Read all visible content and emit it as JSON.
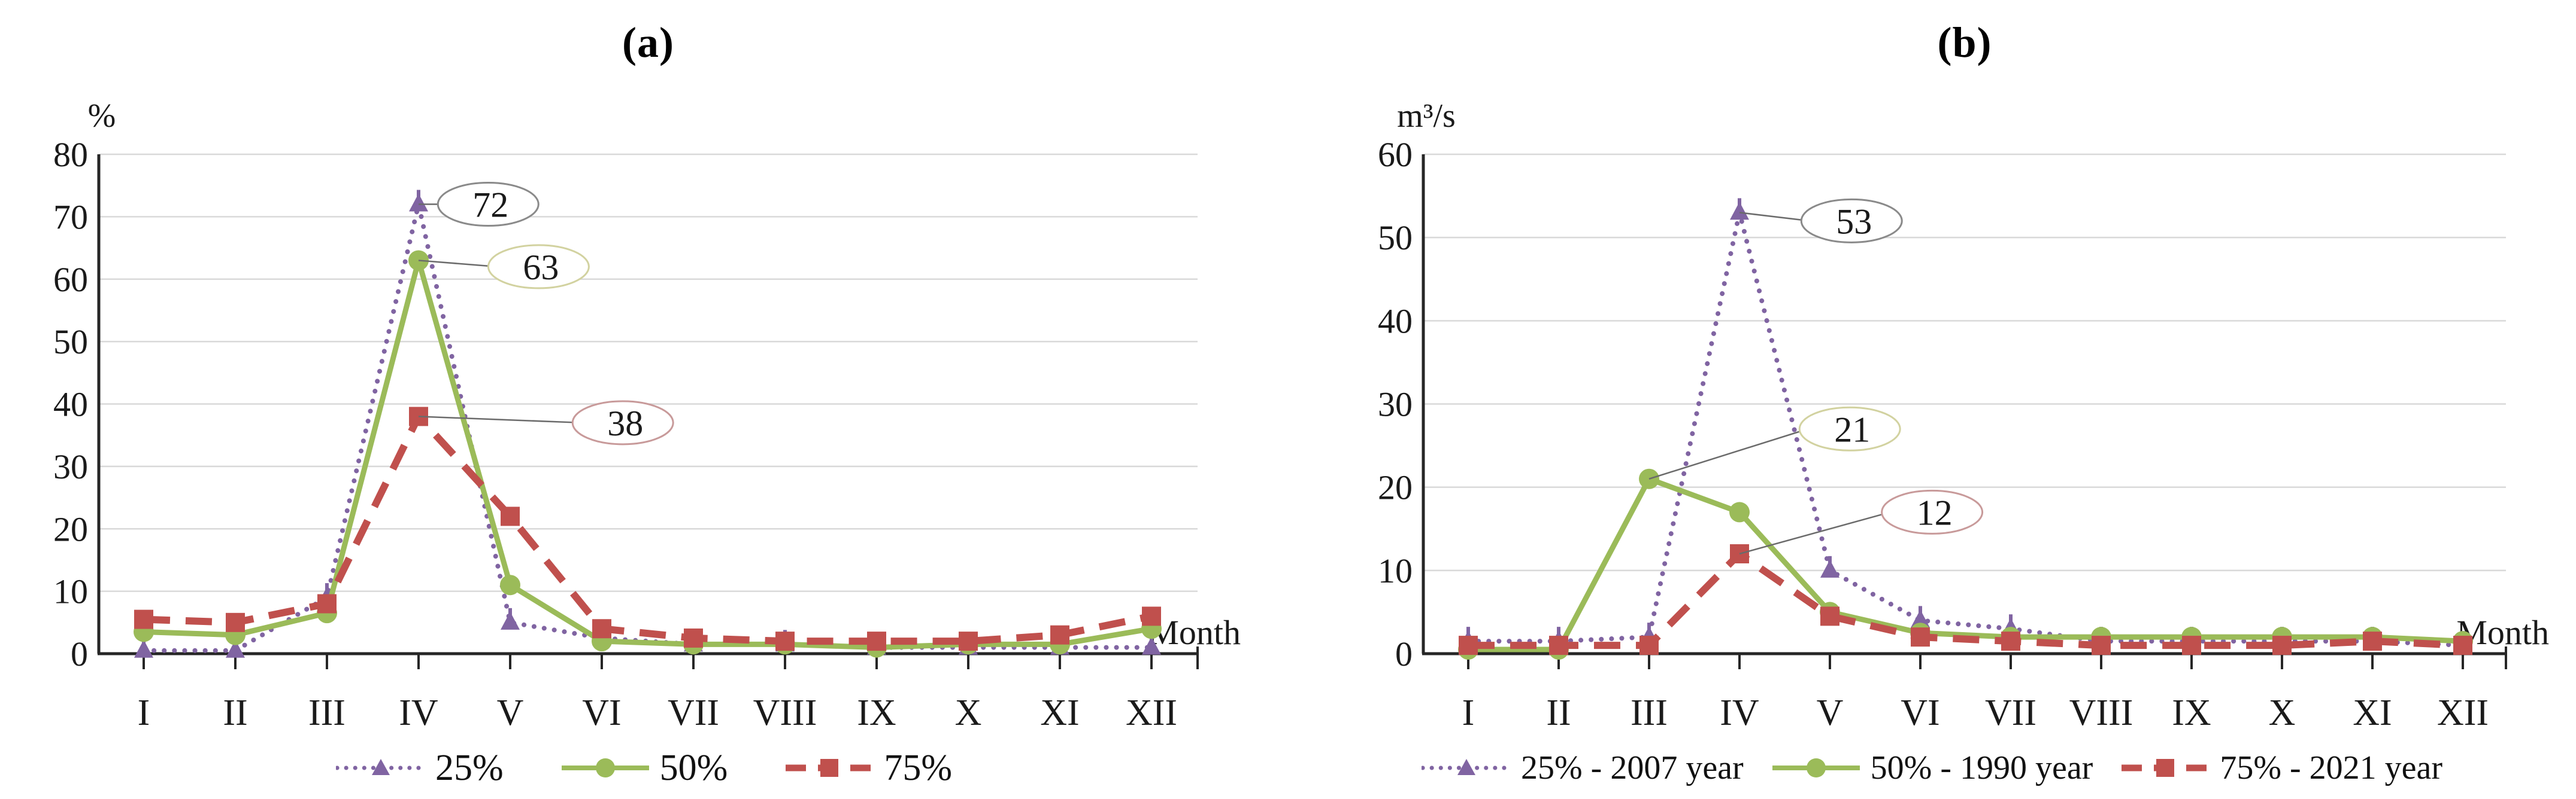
{
  "figure": {
    "background": "#ffffff",
    "axis_color": "#262626",
    "grid_color": "#d9d9d9",
    "callout_line_color": "#6b6b6b"
  },
  "chart_data": [
    {
      "type": "line",
      "title": "(a)",
      "ylabel": "%",
      "xlabel": "Month",
      "ylim": [
        0,
        80
      ],
      "ytick_step": 10,
      "grid": true,
      "legend_position": "bottom",
      "categories": [
        "I",
        "II",
        "III",
        "IV",
        "V",
        "VI",
        "VII",
        "VIII",
        "IX",
        "X",
        "XI",
        "XII"
      ],
      "series": [
        {
          "name": "25%",
          "color": "#8064A2",
          "line_style": "dotted",
          "marker": "triangle",
          "values": [
            0.5,
            0.5,
            9,
            72,
            5,
            2.5,
            1.5,
            1.5,
            1,
            1,
            1,
            1
          ]
        },
        {
          "name": "50%",
          "color": "#9BBB59",
          "line_style": "solid",
          "marker": "circle",
          "values": [
            3.5,
            3,
            6.5,
            63,
            11,
            2,
            1.5,
            1.5,
            1,
            1.5,
            1.5,
            4
          ]
        },
        {
          "name": "75%",
          "color": "#C0504D",
          "line_style": "dashed",
          "marker": "square",
          "values": [
            5.5,
            5,
            8,
            38,
            22,
            4,
            2.5,
            2,
            2,
            2,
            3,
            6
          ]
        }
      ],
      "annotations": [
        {
          "text": "72",
          "anchor_month_index": 3,
          "anchor_value": 72,
          "oval_offset_months": 0.76,
          "oval_value": 72,
          "oval_color": "#8a8a8a"
        },
        {
          "text": "63",
          "anchor_month_index": 3,
          "anchor_value": 63,
          "oval_offset_months": 1.31,
          "oval_value": 62,
          "oval_color": "#d2d2a0"
        },
        {
          "text": "38",
          "anchor_month_index": 3,
          "anchor_value": 38,
          "oval_offset_months": 2.23,
          "oval_value": 37,
          "oval_color": "#c89a9a"
        }
      ]
    },
    {
      "type": "line",
      "title": "(b)",
      "ylabel": "m³/s",
      "xlabel": "Month",
      "ylim": [
        0,
        60
      ],
      "ytick_step": 10,
      "grid": true,
      "legend_position": "bottom",
      "categories": [
        "I",
        "II",
        "III",
        "IV",
        "V",
        "VI",
        "VII",
        "VIII",
        "IX",
        "X",
        "XI",
        "XII"
      ],
      "series": [
        {
          "name": "25% - 2007 year",
          "color": "#8064A2",
          "line_style": "dotted",
          "marker": "triangle",
          "values": [
            1.5,
            1.5,
            2,
            53,
            10,
            4,
            3,
            1.5,
            1.5,
            1.5,
            1.5,
            1
          ]
        },
        {
          "name": "50% - 1990 year",
          "color": "#9BBB59",
          "line_style": "solid",
          "marker": "circle",
          "values": [
            0.5,
            0.5,
            21,
            17,
            5,
            2.5,
            2,
            2,
            2,
            2,
            2,
            1.5
          ]
        },
        {
          "name": "75% - 2021 year",
          "color": "#C0504D",
          "line_style": "dashed",
          "marker": "square",
          "values": [
            1,
            1,
            1,
            12,
            4.5,
            2,
            1.5,
            1,
            1,
            1,
            1.5,
            1
          ]
        }
      ],
      "annotations": [
        {
          "text": "53",
          "anchor_month_index": 3,
          "anchor_value": 53,
          "oval_offset_months": 1.24,
          "oval_value": 52,
          "oval_color": "#8a8a8a"
        },
        {
          "text": "21",
          "anchor_month_index": 2,
          "anchor_value": 21,
          "oval_offset_months": 2.22,
          "oval_value": 27,
          "oval_color": "#d2d2a0"
        },
        {
          "text": "12",
          "anchor_month_index": 3,
          "anchor_value": 12,
          "oval_offset_months": 2.13,
          "oval_value": 17,
          "oval_color": "#c89a9a"
        }
      ]
    }
  ]
}
